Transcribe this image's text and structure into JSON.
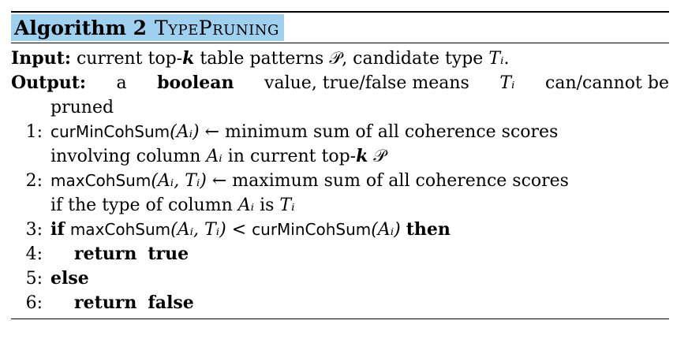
{
  "algorithm": {
    "label": "Algorithm 2",
    "name": "TypePruning"
  },
  "input": {
    "keyword": "Input:",
    "text_a": "current top-",
    "k": "k",
    "text_b": " table patterns ",
    "P": "𝒫",
    "text_c": ", candidate type ",
    "Ti": "Tᵢ",
    "text_d": "."
  },
  "output": {
    "keyword": "Output:",
    "text_a": "a",
    "bool_kw": "boolean",
    "text_b": "value, true/false means",
    "Ti": "Tᵢ",
    "text_c": "can/cannot be",
    "cont": "pruned"
  },
  "steps": [
    {
      "num": "1:",
      "fn": "curMinCohSum",
      "arg": "(Aᵢ)",
      "rest_a": " ← minimum sum of all coherence scores",
      "cont_a": "involving column ",
      "Ai": "Aᵢ",
      "cont_b": " in current top-",
      "k": "k",
      "P": " 𝒫"
    },
    {
      "num": "2:",
      "fn": "maxCohSum",
      "arg": "(Aᵢ, Tᵢ)",
      "rest_a": " ← maximum sum of all coherence scores",
      "cont_a": "if the type of column ",
      "Ai": "Aᵢ",
      "cont_b": " is ",
      "Ti": "Tᵢ"
    },
    {
      "num": "3:",
      "kw_if": "if",
      "fn1": "maxCohSum",
      "arg1": "(Aᵢ, Tᵢ)",
      "lt": " < ",
      "fn2": "curMinCohSum",
      "arg2": "(Aᵢ)",
      "kw_then": "then"
    },
    {
      "num": "4:",
      "kw1": "return",
      "kw2": "true"
    },
    {
      "num": "5:",
      "kw1": "else"
    },
    {
      "num": "6:",
      "kw1": "return",
      "kw2": "false"
    }
  ]
}
